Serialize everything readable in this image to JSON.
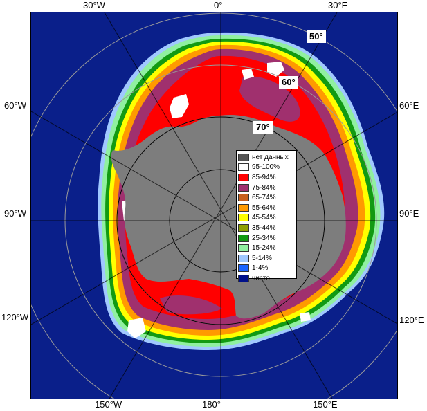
{
  "map": {
    "longitude_labels": {
      "top": [
        "30°W",
        "0°",
        "30°E"
      ],
      "left": [
        "60°W",
        "90°W",
        "120°W"
      ],
      "right": [
        "60°E",
        "90°E",
        "120°E"
      ],
      "bottom": [
        "150°W",
        "180°",
        "150°E"
      ]
    },
    "latitude_labels": [
      "50°",
      "60°",
      "70°"
    ],
    "colors": {
      "ocean": "#0a1f8a",
      "land": "#7d7d7d",
      "frame": "#000000",
      "grid": "#9a9a9a"
    }
  },
  "legend": {
    "items": [
      {
        "label": "нет данных",
        "color": "#555555"
      },
      {
        "label": "95-100%",
        "color": "#ffffff"
      },
      {
        "label": "85-94%",
        "color": "#ff0000"
      },
      {
        "label": "75-84%",
        "color": "#a0306e"
      },
      {
        "label": "65-74%",
        "color": "#c8601e"
      },
      {
        "label": "55-64%",
        "color": "#ff9a00"
      },
      {
        "label": "45-54%",
        "color": "#ffff00"
      },
      {
        "label": "35-44%",
        "color": "#8fa000"
      },
      {
        "label": "25-34%",
        "color": "#129a12"
      },
      {
        "label": "15-24%",
        "color": "#90f0a0"
      },
      {
        "label": "5-14%",
        "color": "#a0c8ff"
      },
      {
        "label": "1-4%",
        "color": "#1a64ff"
      },
      {
        "label": "чисто",
        "color": "#00108a"
      }
    ]
  }
}
